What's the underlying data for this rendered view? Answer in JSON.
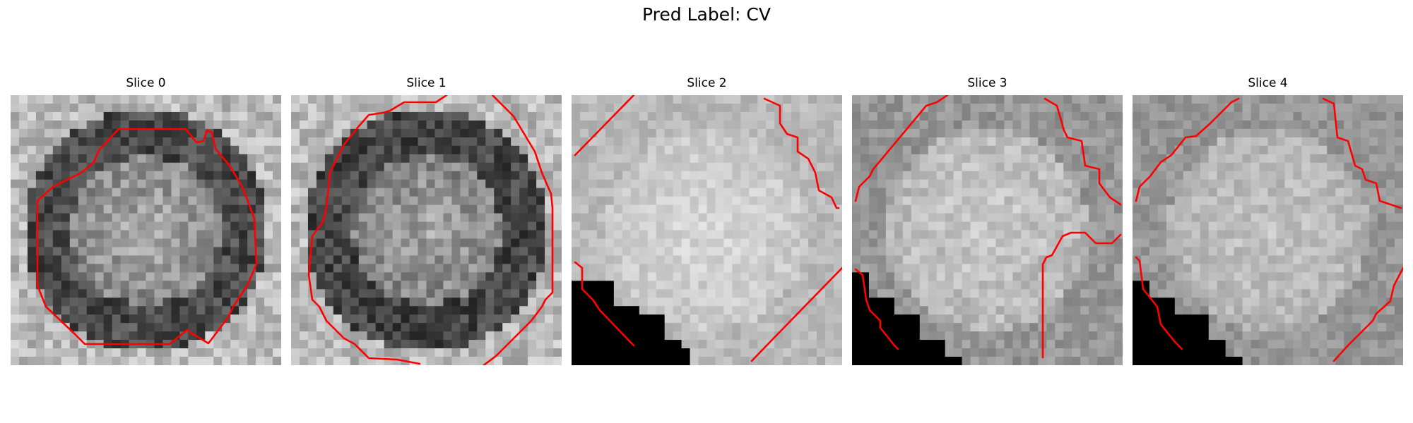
{
  "figure": {
    "title": "Pred Label: CV",
    "contour_color": "#ff0000",
    "mask_color": "#000000"
  },
  "panels": [
    {
      "title": "Slice 0"
    },
    {
      "title": "Slice 1"
    },
    {
      "title": "Slice 2"
    },
    {
      "title": "Slice 3"
    },
    {
      "title": "Slice 4"
    }
  ]
}
